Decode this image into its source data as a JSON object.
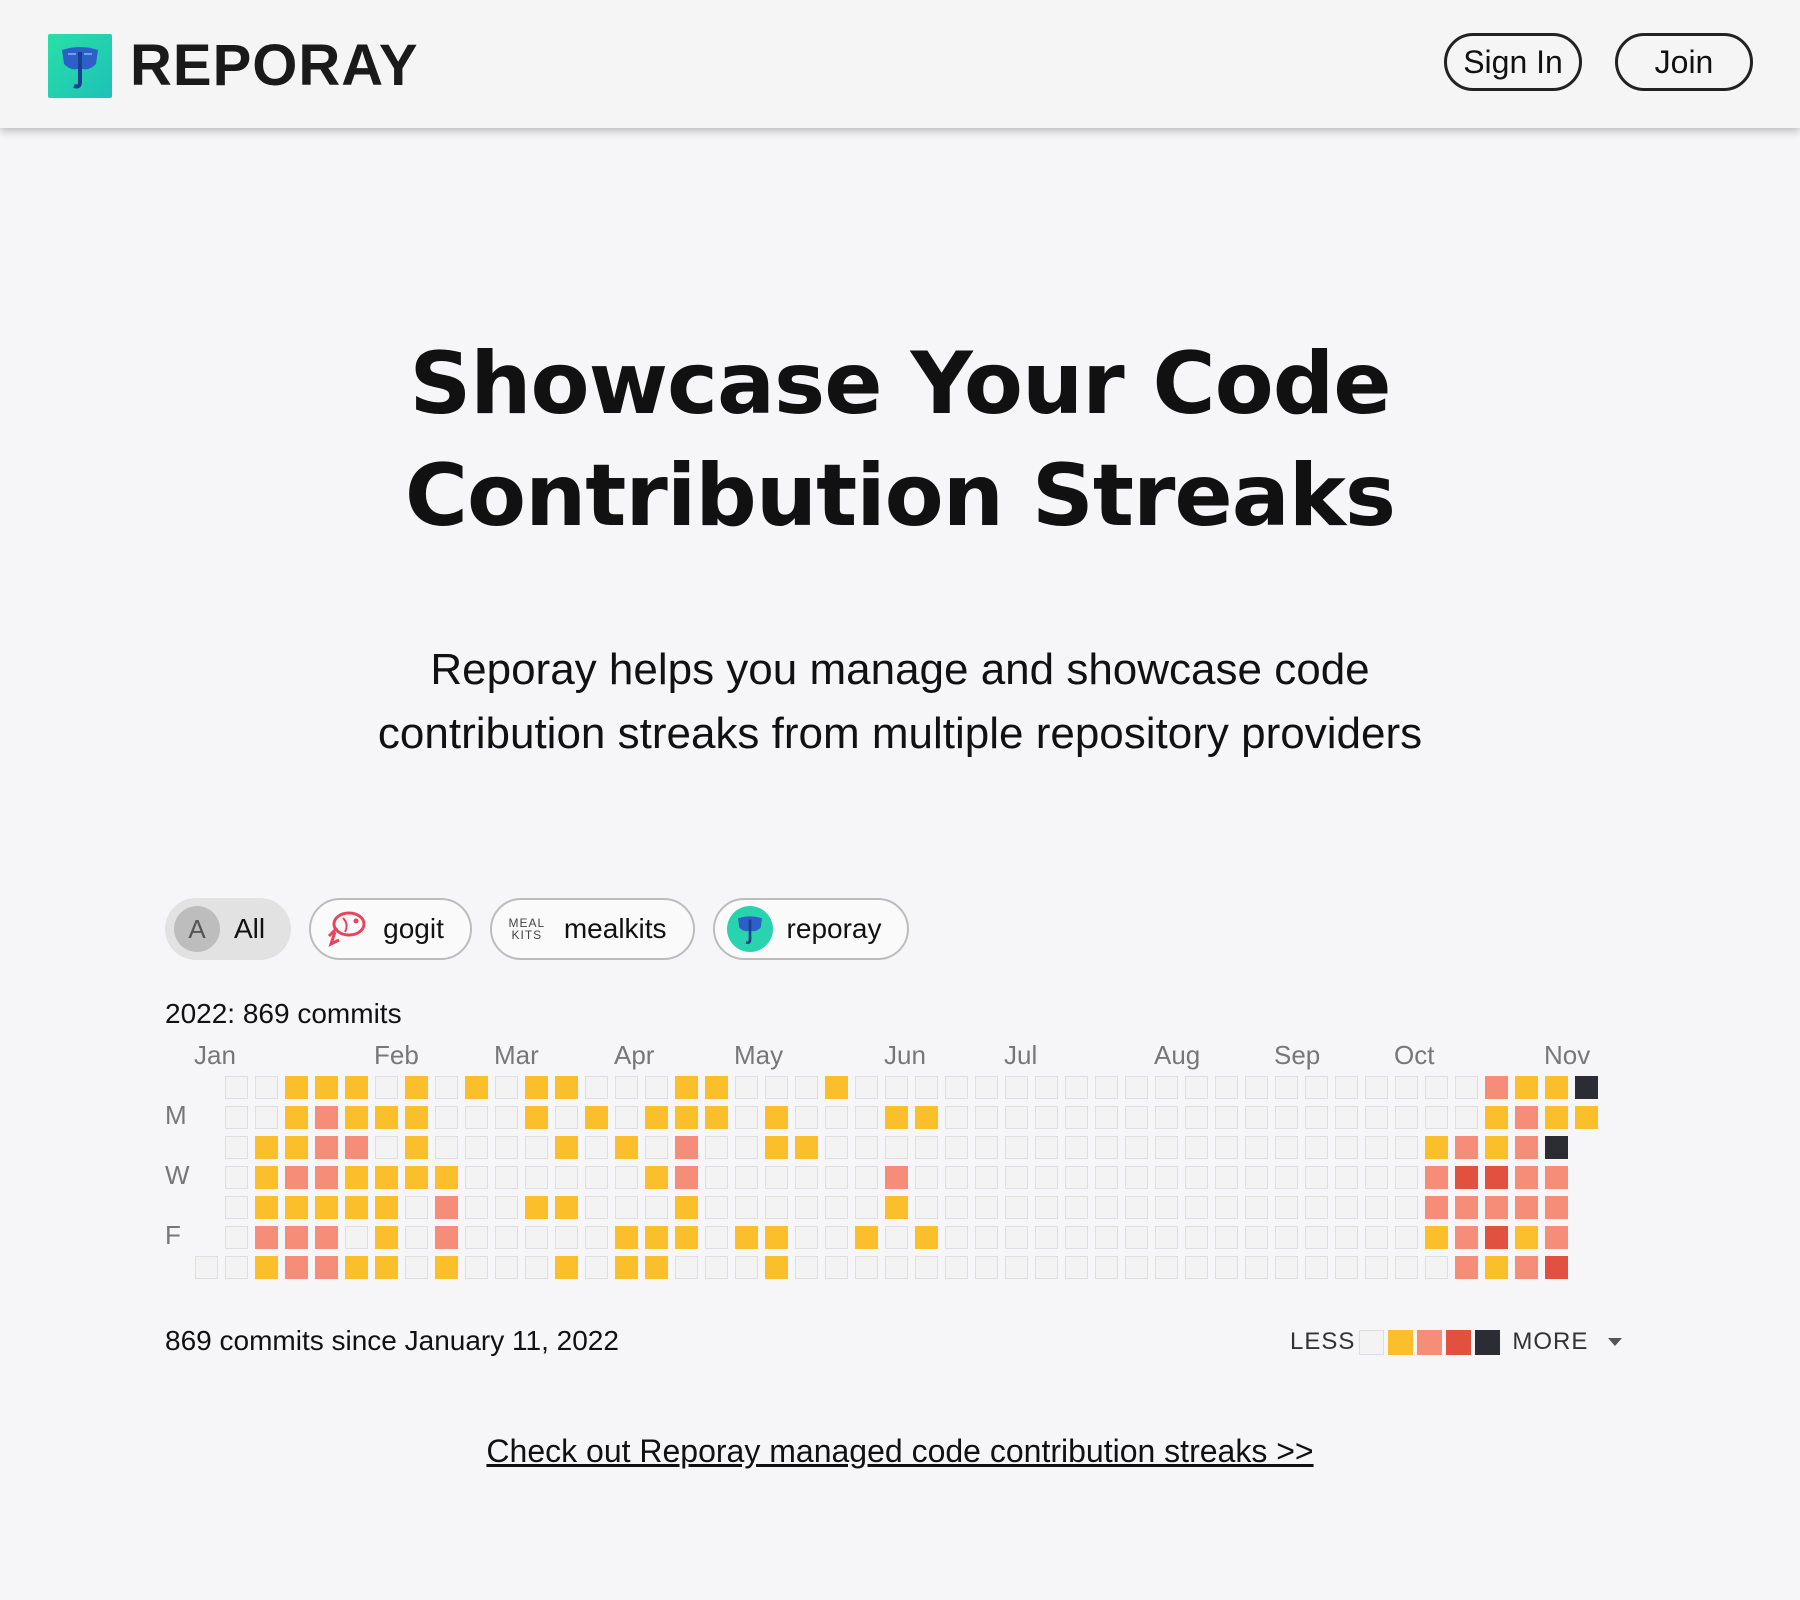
{
  "header": {
    "brand": "REPORAY",
    "signin_label": "Sign In",
    "join_label": "Join"
  },
  "hero": {
    "title_line1": "Showcase Your Code",
    "title_line2": "Contribution Streaks",
    "subtitle_line1": "Reporay helps you manage and showcase code",
    "subtitle_line2": "contribution streaks from multiple repository providers"
  },
  "filters": [
    {
      "label": "All",
      "avatar_text": "A",
      "active": true
    },
    {
      "label": "gogit",
      "icon": "fish-icon",
      "active": false
    },
    {
      "label": "mealkits",
      "avatar_text": "MEAL KITS",
      "active": false
    },
    {
      "label": "reporay",
      "icon": "reporay-logo-icon",
      "active": false
    }
  ],
  "calendar": {
    "summary": "2022: 869 commits",
    "months": [
      "Jan",
      "Feb",
      "Mar",
      "Apr",
      "May",
      "Jun",
      "Jul",
      "Aug",
      "Sep",
      "Oct",
      "Nov"
    ],
    "day_labels": [
      "M",
      "W",
      "F"
    ],
    "levels_colors": [
      "#f3f3f3",
      "#fbbf2c",
      "#f58d78",
      "#e2513f",
      "#2c2c35"
    ],
    "weeks": [
      [
        -1,
        -1,
        -1,
        -1,
        -1,
        -1,
        0
      ],
      [
        0,
        0,
        0,
        0,
        0,
        0,
        0
      ],
      [
        0,
        0,
        1,
        1,
        1,
        2,
        1
      ],
      [
        1,
        1,
        1,
        2,
        1,
        2,
        2
      ],
      [
        1,
        2,
        2,
        2,
        1,
        2,
        2
      ],
      [
        1,
        1,
        2,
        1,
        1,
        0,
        1
      ],
      [
        0,
        1,
        0,
        1,
        1,
        1,
        1
      ],
      [
        1,
        1,
        1,
        1,
        0,
        0,
        0
      ],
      [
        0,
        0,
        0,
        1,
        2,
        2,
        1
      ],
      [
        1,
        0,
        0,
        0,
        0,
        0,
        0
      ],
      [
        0,
        0,
        0,
        0,
        0,
        0,
        0
      ],
      [
        1,
        1,
        0,
        0,
        1,
        0,
        0
      ],
      [
        1,
        0,
        1,
        0,
        1,
        0,
        1
      ],
      [
        0,
        1,
        0,
        0,
        0,
        0,
        0
      ],
      [
        0,
        0,
        1,
        0,
        0,
        1,
        1
      ],
      [
        0,
        1,
        0,
        1,
        0,
        1,
        1
      ],
      [
        1,
        1,
        2,
        2,
        1,
        1,
        0
      ],
      [
        1,
        1,
        0,
        0,
        0,
        0,
        0
      ],
      [
        0,
        0,
        0,
        0,
        0,
        1,
        0
      ],
      [
        0,
        1,
        1,
        0,
        0,
        1,
        1
      ],
      [
        0,
        0,
        1,
        0,
        0,
        0,
        0
      ],
      [
        1,
        0,
        0,
        0,
        0,
        0,
        0
      ],
      [
        0,
        0,
        0,
        0,
        0,
        1,
        0
      ],
      [
        0,
        1,
        0,
        2,
        1,
        0,
        0
      ],
      [
        0,
        1,
        0,
        0,
        0,
        1,
        0
      ],
      [
        0,
        0,
        0,
        0,
        0,
        0,
        0
      ],
      [
        0,
        0,
        0,
        0,
        0,
        0,
        0
      ],
      [
        0,
        0,
        0,
        0,
        0,
        0,
        0
      ],
      [
        0,
        0,
        0,
        0,
        0,
        0,
        0
      ],
      [
        0,
        0,
        0,
        0,
        0,
        0,
        0
      ],
      [
        0,
        0,
        0,
        0,
        0,
        0,
        0
      ],
      [
        0,
        0,
        0,
        0,
        0,
        0,
        0
      ],
      [
        0,
        0,
        0,
        0,
        0,
        0,
        0
      ],
      [
        0,
        0,
        0,
        0,
        0,
        0,
        0
      ],
      [
        0,
        0,
        0,
        0,
        0,
        0,
        0
      ],
      [
        0,
        0,
        0,
        0,
        0,
        0,
        0
      ],
      [
        0,
        0,
        0,
        0,
        0,
        0,
        0
      ],
      [
        0,
        0,
        0,
        0,
        0,
        0,
        0
      ],
      [
        0,
        0,
        0,
        0,
        0,
        0,
        0
      ],
      [
        0,
        0,
        0,
        0,
        0,
        0,
        0
      ],
      [
        0,
        0,
        0,
        0,
        0,
        0,
        0
      ],
      [
        0,
        0,
        1,
        2,
        2,
        1,
        0
      ],
      [
        0,
        0,
        2,
        3,
        2,
        2,
        2
      ],
      [
        2,
        1,
        1,
        3,
        2,
        3,
        1
      ],
      [
        1,
        2,
        2,
        2,
        2,
        1,
        2
      ],
      [
        1,
        1,
        4,
        2,
        2,
        2,
        3
      ],
      [
        4,
        1,
        -1,
        -1,
        -1,
        -1,
        -1
      ]
    ]
  },
  "footer_note": "869 commits since January 11, 2022",
  "legend": {
    "less": "LESS",
    "more": "MORE"
  },
  "cta": "Check out Reporay managed code contribution streaks >>"
}
